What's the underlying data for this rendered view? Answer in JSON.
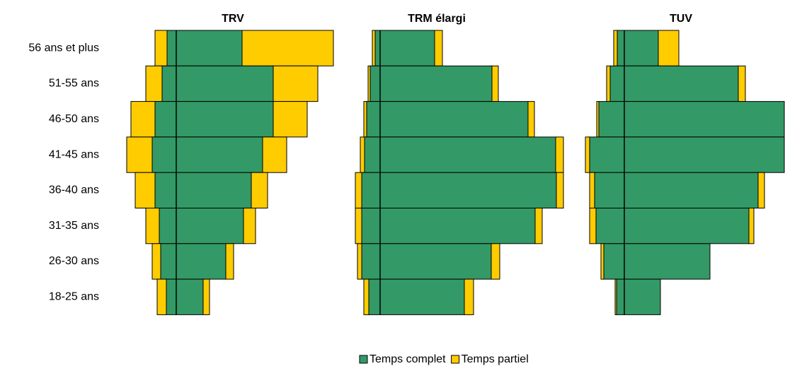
{
  "chart_data": {
    "type": "pyramid",
    "categories": [
      "56 ans et plus",
      "51-55 ans",
      "46-50 ans",
      "41-45 ans",
      "36-40 ans",
      "31-35 ans",
      "26-30 ans",
      "18-25 ans"
    ],
    "legend": "bottom",
    "panels": [
      {
        "title": "TRV",
        "series": [
          {
            "name": "Temps complet",
            "color": "#339966",
            "left": [
              13,
              20,
              30,
              34,
              30,
              24,
              22,
              14
            ],
            "right": [
              93,
              137,
              137,
              122,
              106,
              95,
              70,
              38
            ]
          },
          {
            "name": "Temps partiel",
            "color": "#ffcc00",
            "left": [
              17,
              23,
              34,
              36,
              28,
              19,
              12,
              13
            ],
            "right": [
              129,
              63,
              48,
              34,
              23,
              17,
              11,
              9
            ]
          }
        ]
      },
      {
        "title": "TRM élargi",
        "series": [
          {
            "name": "Temps complet",
            "color": "#339966",
            "left": [
              7,
              14,
              19,
              22,
              26,
              26,
              26,
              16
            ],
            "right": [
              77,
              158,
              209,
              248,
              249,
              219,
              157,
              119
            ]
          },
          {
            "name": "Temps partiel",
            "color": "#ffcc00",
            "left": [
              4,
              3,
              4,
              6,
              9,
              9,
              6,
              7
            ],
            "right": [
              11,
              9,
              9,
              11,
              10,
              10,
              12,
              13
            ]
          }
        ]
      },
      {
        "title": "TUV",
        "series": [
          {
            "name": "Temps complet",
            "color": "#339966",
            "left": [
              10,
              20,
              36,
              49,
              42,
              40,
              29,
              11
            ],
            "right": [
              48,
              161,
              226,
              226,
              189,
              176,
              121,
              51
            ]
          },
          {
            "name": "Temps partiel",
            "color": "#ffcc00",
            "left": [
              5,
              5,
              3,
              6,
              7,
              9,
              4,
              2
            ],
            "right": [
              29,
              10,
              0,
              0,
              9,
              7,
              0,
              0
            ]
          }
        ]
      }
    ]
  }
}
